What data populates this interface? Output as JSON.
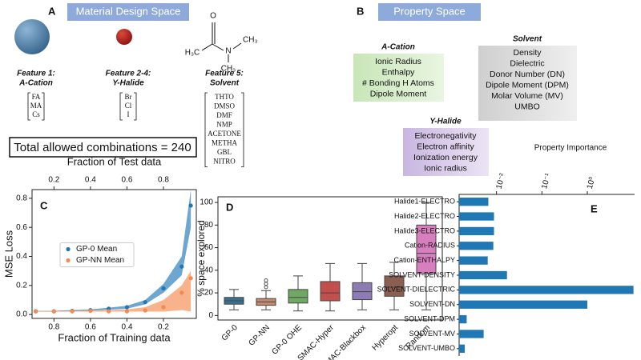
{
  "panel_a": {
    "label": "A",
    "title": "Material Design Space",
    "molecule": [
      "O",
      "H₃C",
      "N",
      "CH₃",
      "CH₃"
    ],
    "features": [
      {
        "title": "Feature 1:",
        "subtitle": "A-Cation",
        "items": [
          "FA",
          "MA",
          "Cs"
        ]
      },
      {
        "title": "Feature 2-4:",
        "subtitle": "Y-Halide",
        "items": [
          "Br",
          "Cl",
          "I"
        ]
      },
      {
        "title": "Feature 5:",
        "subtitle": "Solvent",
        "items": [
          "THTO",
          "DMSO",
          "DMF",
          "NMP",
          "ACETONE",
          "METHA",
          "GBL",
          "NITRO"
        ]
      }
    ],
    "total": "Total allowed combinations = 240"
  },
  "panel_b": {
    "label": "B",
    "title": "Property Space",
    "groups": [
      {
        "name": "A-Cation",
        "items": [
          "Ionic Radius",
          "Enthalpy",
          "# Bonding H Atoms",
          "Dipole Moment"
        ]
      },
      {
        "name": "Solvent",
        "items": [
          "Density",
          "Dielectric",
          "Donor Number (DN)",
          "Dipole Moment (DPM)",
          "Molar Volume (MV)",
          "UMBO"
        ]
      },
      {
        "name": "Y-Halide",
        "items": [
          "Electronegativity",
          "Electron affinity",
          "Ionization energy",
          "Ionic radius"
        ]
      }
    ]
  },
  "chart_data": [
    {
      "type": "scatter",
      "panel_label": "C",
      "xlabel": "Fraction of Training data",
      "x2label": "Fraction of Test data",
      "ylabel": "MSE Loss",
      "x": [
        0.9,
        0.8,
        0.7,
        0.6,
        0.5,
        0.4,
        0.3,
        0.2,
        0.1,
        0.05
      ],
      "xlim": [
        0.92,
        0.02
      ],
      "xticks": [
        0.8,
        0.6,
        0.4,
        0.2
      ],
      "x2lim": [
        0.08,
        0.98
      ],
      "x2ticks": [
        0.2,
        0.4,
        0.6,
        0.8
      ],
      "ylim": [
        -0.027,
        0.86
      ],
      "yticks": [
        {
          "value": 0,
          "label": "0.0"
        },
        0.2,
        0.4,
        0.6,
        0.8
      ],
      "legend": "center left",
      "series": [
        {
          "name": "GP-0 Mean",
          "color": "#1f77b4",
          "values": [
            0.022,
            0.022,
            0.025,
            0.03,
            0.04,
            0.05,
            0.085,
            0.18,
            0.33,
            0.75
          ],
          "lower": [
            0.02,
            0.02,
            0.022,
            0.027,
            0.033,
            0.04,
            0.07,
            0.15,
            0.27,
            0.6
          ],
          "upper": [
            0.024,
            0.025,
            0.03,
            0.035,
            0.047,
            0.06,
            0.1,
            0.21,
            0.4,
            0.86
          ]
        },
        {
          "name": "GP-NN Mean",
          "color": "#f5894e",
          "values": [
            0.022,
            0.022,
            0.022,
            0.025,
            0.022,
            0.022,
            0.028,
            0.05,
            0.15,
            0.25
          ],
          "lower": [
            0.02,
            0.02,
            0.02,
            0.02,
            0.02,
            0.02,
            0.02,
            0.02,
            0.03,
            0.02
          ],
          "upper": [
            0.024,
            0.025,
            0.025,
            0.03,
            0.03,
            0.035,
            0.05,
            0.1,
            0.2,
            0.3
          ]
        }
      ]
    },
    {
      "type": "box",
      "panel_label": "D",
      "ylabel": "% space explored",
      "categories": [
        "GP-0",
        "GP-NN",
        "GP-0 OHE",
        "SMAC-Hyper",
        "SMAC-Blackbox",
        "Hyperopt",
        "Random"
      ],
      "colors": [
        "#3a7190",
        "#c58a6b",
        "#6fa862",
        "#c24f4c",
        "#8d7cb4",
        "#8b5e52",
        "#d77fbe"
      ],
      "whisker_low": [
        5,
        5,
        4,
        4,
        5,
        5,
        5
      ],
      "q1": [
        10,
        9,
        11,
        13,
        14,
        17,
        37
      ],
      "median": [
        13,
        12,
        16,
        20,
        21,
        25,
        55
      ],
      "q3": [
        16,
        15,
        23,
        30,
        29,
        35,
        80
      ],
      "whisker_high": [
        23,
        22,
        35,
        46,
        46,
        47,
        100
      ],
      "outliers": [
        [],
        [
          25,
          28,
          31
        ],
        [],
        [],
        [],
        [],
        []
      ],
      "ylim": [
        -4,
        105
      ],
      "yticks": [
        0,
        20,
        40,
        60,
        80,
        100
      ]
    },
    {
      "type": "barh",
      "panel_label": "E",
      "title": "Property Importance",
      "categories": [
        "Halide1-ELECTRO",
        "Halide2-ELECTRO",
        "Halide3-ELECTRO",
        "Cation-RADIUS",
        "Cation-ENTHALPY",
        "SOLVENT-DENSITY",
        "SOLVENT-DIELECTRIC",
        "SOLVENT-DN",
        "SOLVENT-DPM",
        "SOLVENT-MV",
        "SOLVENT-UMBO"
      ],
      "values": [
        0.0066,
        0.0088,
        0.0088,
        0.0085,
        0.0064,
        0.017,
        10.4,
        1.0,
        0.0022,
        0.0052,
        0.002
      ],
      "color": "#1f77b4",
      "xscale": "log",
      "xlim": [
        0.0015,
        11
      ],
      "xticks": [
        {
          "value": 0.01,
          "label": "10⁻²"
        },
        {
          "value": 0.1,
          "label": "10⁻¹"
        },
        {
          "value": 1,
          "label": "10⁰"
        }
      ]
    }
  ]
}
